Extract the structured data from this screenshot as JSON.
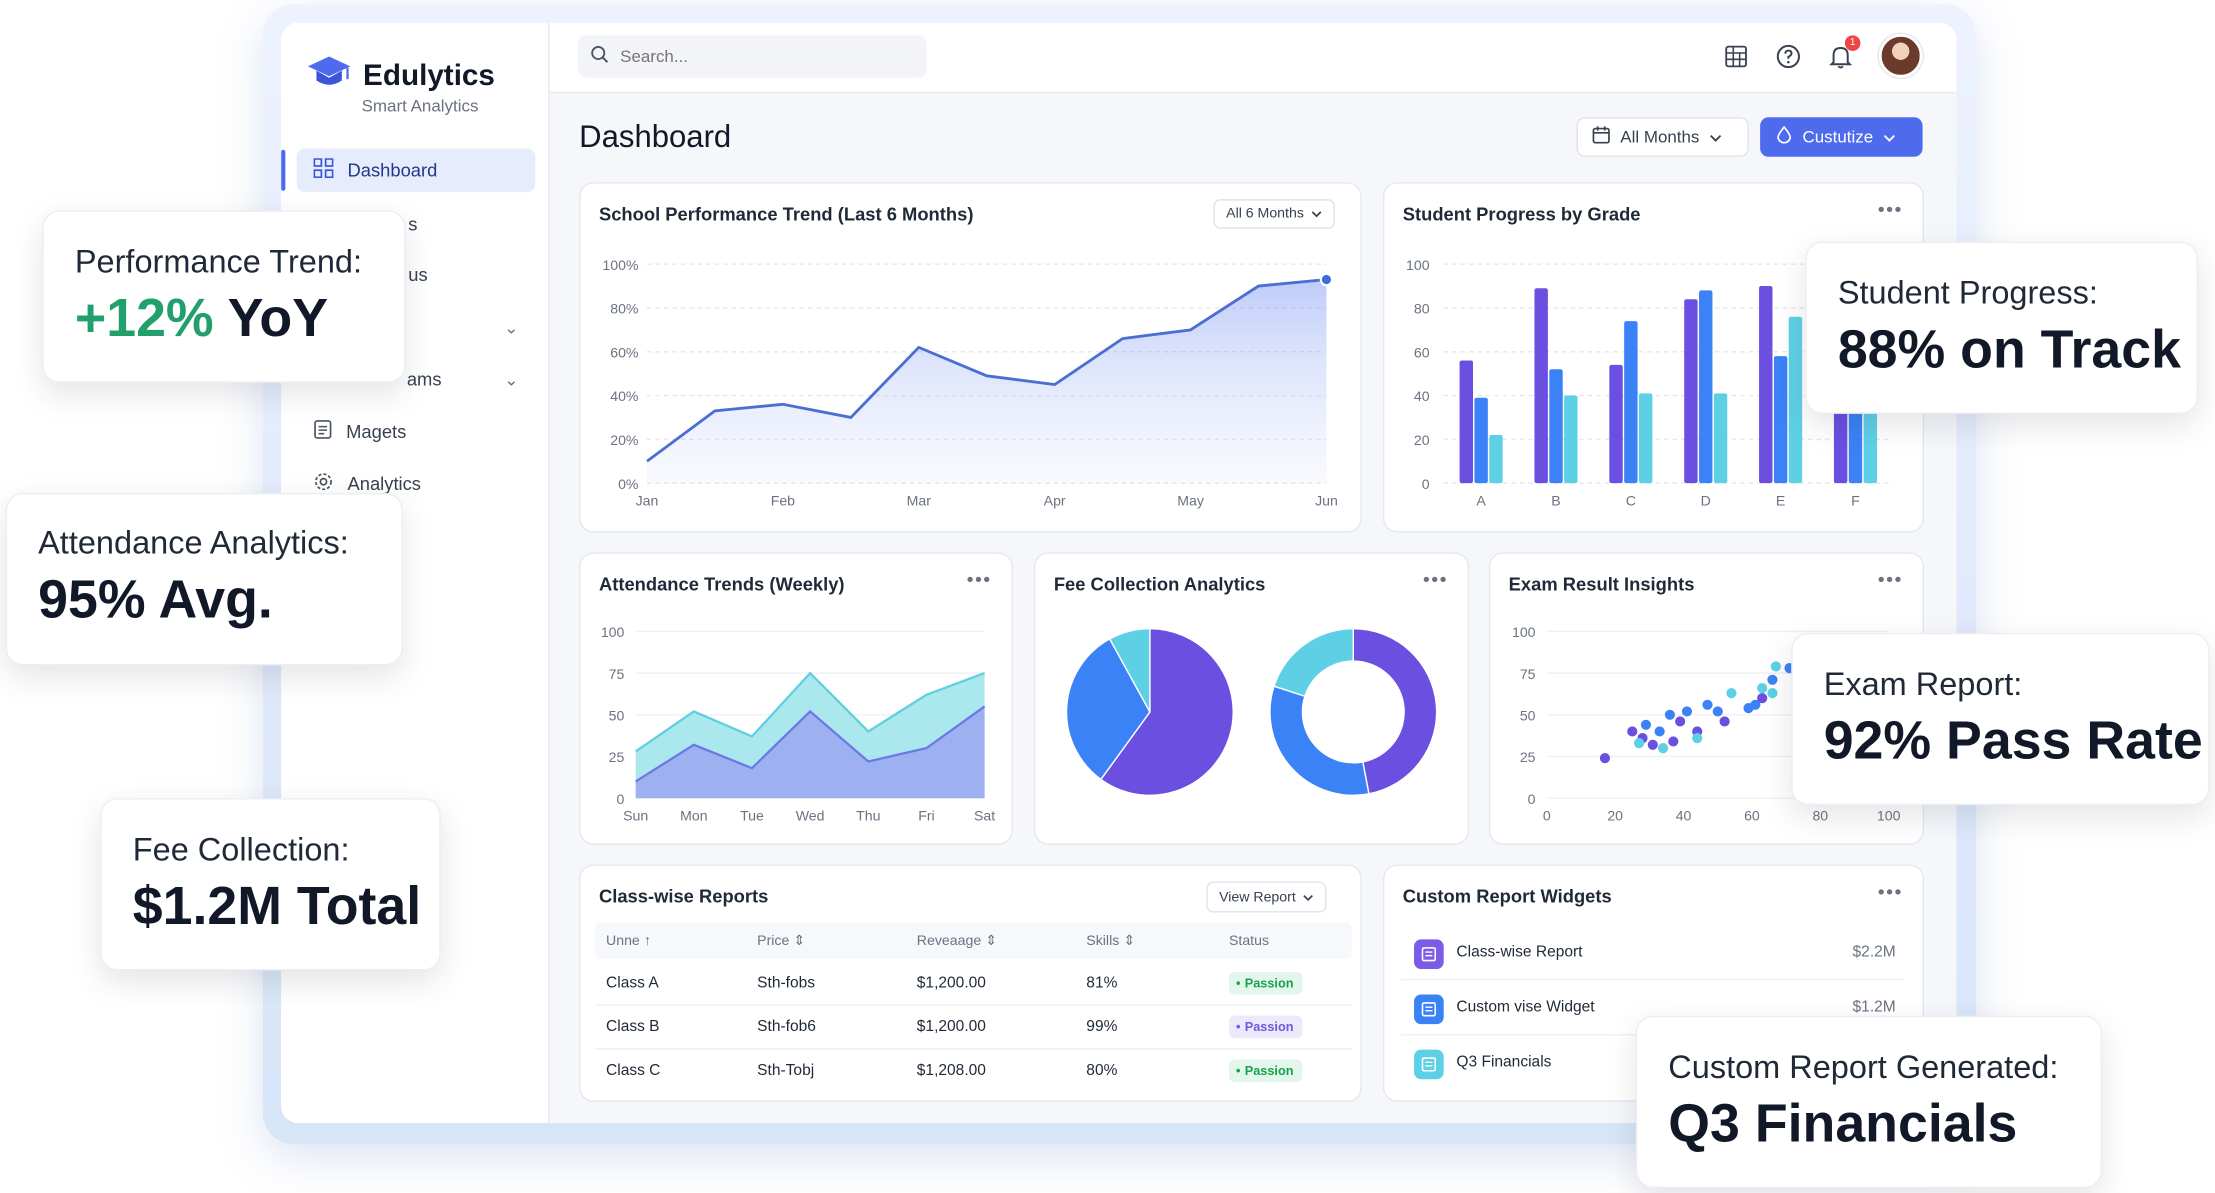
{
  "app": {
    "name": "Edulytics",
    "tagline": "Smart Analytics"
  },
  "sidebar": {
    "items": [
      {
        "label": "Dashboard"
      },
      {
        "label": "s"
      },
      {
        "label": "us"
      },
      {
        "label": "ams"
      },
      {
        "label": "Magets"
      },
      {
        "label": "Analytics"
      }
    ]
  },
  "topbar": {
    "search_placeholder": "Search...",
    "notification_count": "1"
  },
  "page": {
    "title": "Dashboard",
    "months_button": "All Months",
    "customize_button": "Custutize"
  },
  "cards": {
    "performance": {
      "title": "School Performance Trend (Last 6 Months)",
      "range": "All 6 Months"
    },
    "progress": {
      "title": "Student Progress by Grade"
    },
    "attendance": {
      "title": "Attendance Trends (Weekly)"
    },
    "fee": {
      "title": "Fee Collection Analytics"
    },
    "exam": {
      "title": "Exam Result Insights"
    },
    "classwise": {
      "title": "Class-wise Reports",
      "view_button": "View Report",
      "columns": [
        "Unne",
        "Price",
        "Reveaage",
        "Skills",
        "Status"
      ],
      "rows": [
        {
          "name": "Class A",
          "price": "Sth-fobs",
          "revenue": "$1,200.00",
          "skills": "81%",
          "status": "Passion"
        },
        {
          "name": "Class B",
          "price": "Sth-fob6",
          "revenue": "$1,200.00",
          "skills": "99%",
          "status": "Passion"
        },
        {
          "name": "Class C",
          "price": "Sth-Tobj",
          "revenue": "$1,208.00",
          "skills": "80%",
          "status": "Passion"
        }
      ]
    },
    "widgets": {
      "title": "Custom Report Widgets",
      "items": [
        {
          "label": "Class-wise Report",
          "value": "$2.2M"
        },
        {
          "label": "Custom vise Widget",
          "value": "$1.2M"
        },
        {
          "label": "Q3 Financials",
          "value": ""
        }
      ]
    }
  },
  "callouts": {
    "performance": {
      "label": "Performance Trend:",
      "value_green": "+12%",
      "value_rest": "YoY"
    },
    "attendance": {
      "label": "Attendance Analytics:",
      "value": "95% Avg."
    },
    "fee": {
      "label": "Fee Collection:",
      "value": "$1.2M Total"
    },
    "progress": {
      "label": "Student Progress:",
      "value": "88% on Track"
    },
    "exam": {
      "label": "Exam Report:",
      "value": "92% Pass Rate"
    },
    "custom": {
      "label": "Custom Report Generated:",
      "value": "Q3 Financials"
    }
  },
  "colors": {
    "accent": "#4f6bed",
    "purple": "#6a4fe0",
    "blue": "#3b82f6",
    "teal": "#5ed0e6",
    "green": "#22a06b"
  },
  "chart_data": [
    {
      "type": "line",
      "title": "School Performance Trend (Last 6 Months)",
      "x": [
        0,
        0.5,
        1,
        1.5,
        2,
        2.5,
        3,
        3.5,
        4,
        4.5,
        5
      ],
      "x_tick_labels": [
        "Jan",
        "Feb",
        "Mar",
        "Apr",
        "May",
        "Jun"
      ],
      "series": [
        {
          "values": [
            10,
            33,
            36,
            30,
            62,
            49,
            45,
            66,
            70,
            90,
            93
          ]
        }
      ],
      "y_tick_labels": [
        "0%",
        "20%",
        "40%",
        "60%",
        "80%",
        "100%"
      ],
      "ylim": [
        0,
        100
      ]
    },
    {
      "type": "bar",
      "title": "Student Progress by Grade",
      "categories": [
        "A",
        "B",
        "C",
        "D",
        "E",
        "F"
      ],
      "series": [
        {
          "values": [
            56,
            89,
            54,
            84,
            90,
            48
          ]
        },
        {
          "values": [
            39,
            52,
            74,
            88,
            58,
            65
          ]
        },
        {
          "values": [
            22,
            40,
            41,
            41,
            76,
            73
          ]
        }
      ],
      "y_tick_labels": [
        "0",
        "20",
        "40",
        "60",
        "80",
        "100"
      ],
      "ylim": [
        0,
        100
      ]
    },
    {
      "type": "area",
      "title": "Attendance Trends (Weekly)",
      "categories": [
        "Sun",
        "Mon",
        "Tue",
        "Wed",
        "Thu",
        "Fri",
        "Sat"
      ],
      "series": [
        {
          "values": [
            28,
            52,
            37,
            75,
            40,
            62,
            75
          ]
        },
        {
          "values": [
            10,
            32,
            18,
            52,
            22,
            30,
            55
          ]
        }
      ],
      "y_tick_labels": [
        "0",
        "25",
        "50",
        "75",
        "100"
      ],
      "ylim": [
        0,
        100
      ]
    },
    {
      "type": "pie",
      "title": "Fee Collection Analytics",
      "pie": [
        {
          "label": "purple",
          "value": 60
        },
        {
          "label": "blue",
          "value": 32
        },
        {
          "label": "teal",
          "value": 8
        }
      ],
      "donut": [
        {
          "label": "purple",
          "value": 47
        },
        {
          "label": "blue",
          "value": 33
        },
        {
          "label": "teal",
          "value": 20
        }
      ]
    },
    {
      "type": "scatter",
      "title": "Exam Result Insights",
      "series": [
        {
          "color": "purple",
          "points": [
            [
              17,
              24
            ],
            [
              25,
              40
            ],
            [
              28,
              36
            ],
            [
              31,
              32
            ],
            [
              37,
              34
            ],
            [
              39,
              46
            ],
            [
              44,
              40
            ],
            [
              52,
              46
            ],
            [
              63,
              60
            ]
          ]
        },
        {
          "color": "blue",
          "points": [
            [
              29,
              44
            ],
            [
              33,
              40
            ],
            [
              36,
              50
            ],
            [
              41,
              52
            ],
            [
              47,
              56
            ],
            [
              50,
              52
            ],
            [
              59,
              54
            ],
            [
              61,
              56
            ],
            [
              66,
              71
            ],
            [
              71,
              78
            ],
            [
              73,
              74
            ],
            [
              74,
              85
            ]
          ]
        },
        {
          "color": "teal",
          "points": [
            [
              27,
              33
            ],
            [
              34,
              30
            ],
            [
              44,
              36
            ],
            [
              54,
              63
            ],
            [
              63,
              66
            ],
            [
              66,
              63
            ],
            [
              67,
              79
            ]
          ]
        }
      ],
      "x_tick_labels": [
        "0",
        "20",
        "40",
        "60",
        "80",
        "100"
      ],
      "y_tick_labels": [
        "0",
        "25",
        "50",
        "75",
        "100"
      ],
      "xlim": [
        0,
        100
      ],
      "ylim": [
        0,
        100
      ]
    }
  ]
}
